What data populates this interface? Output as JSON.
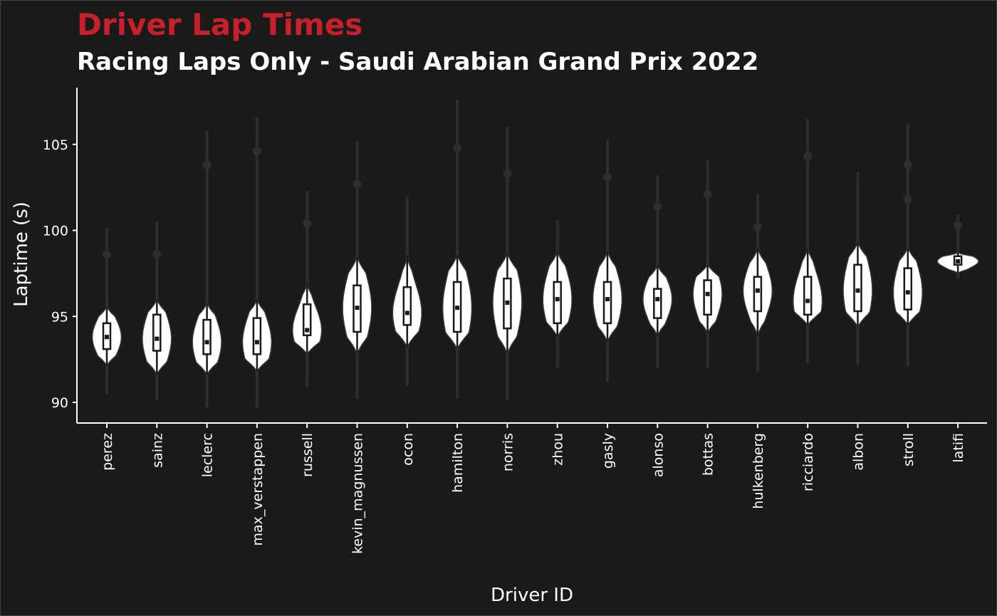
{
  "chart_data": {
    "type": "violin",
    "title": "Driver Lap Times",
    "subtitle": "Racing Laps Only - Saudi Arabian Grand Prix 2022",
    "xlabel": "Driver ID",
    "ylabel": "Laptime (s)",
    "ylim": [
      88.9,
      108.4
    ],
    "yticks": [
      90,
      95,
      100,
      105
    ],
    "grid": false,
    "colors": {
      "background": "#1a1a1a",
      "title": "#c8202a",
      "text": "#ffffff",
      "violin": "#ffffff",
      "whisker": "#2e2e2e",
      "outlier": "#2e2e2e",
      "box": "#1a1a1a"
    },
    "drivers": [
      {
        "name": "perez",
        "min": 90.5,
        "max": 100.1,
        "q1": 93.1,
        "median": 93.8,
        "q3": 94.6,
        "box_min": 92.1,
        "box_max": 95.6,
        "outliers": [
          98.6
        ]
      },
      {
        "name": "sainz",
        "min": 90.1,
        "max": 100.5,
        "q1": 93.0,
        "median": 93.7,
        "q3": 95.1,
        "box_min": 91.6,
        "box_max": 96.0,
        "outliers": [
          98.6
        ]
      },
      {
        "name": "leclerc",
        "min": 89.7,
        "max": 105.8,
        "q1": 92.8,
        "median": 93.5,
        "q3": 94.8,
        "box_min": 91.6,
        "box_max": 95.8,
        "outliers": [
          103.8
        ]
      },
      {
        "name": "max_verstappen",
        "min": 89.7,
        "max": 106.6,
        "q1": 92.8,
        "median": 93.5,
        "q3": 94.9,
        "box_min": 91.8,
        "box_max": 96.0,
        "outliers": [
          104.6
        ]
      },
      {
        "name": "russell",
        "min": 90.9,
        "max": 102.3,
        "q1": 93.9,
        "median": 94.2,
        "q3": 95.7,
        "box_min": 92.8,
        "box_max": 97.0,
        "outliers": [
          100.4
        ]
      },
      {
        "name": "kevin_magnussen",
        "min": 90.2,
        "max": 105.2,
        "q1": 94.1,
        "median": 95.5,
        "q3": 96.8,
        "box_min": 92.8,
        "box_max": 98.5,
        "outliers": [
          102.7
        ]
      },
      {
        "name": "ocon",
        "min": 91.0,
        "max": 102.0,
        "q1": 94.5,
        "median": 95.2,
        "q3": 96.7,
        "box_min": 93.2,
        "box_max": 98.6,
        "outliers": []
      },
      {
        "name": "hamilton",
        "min": 90.2,
        "max": 107.6,
        "q1": 94.1,
        "median": 95.5,
        "q3": 97.0,
        "box_min": 93.1,
        "box_max": 98.6,
        "outliers": [
          104.8
        ]
      },
      {
        "name": "norris",
        "min": 90.1,
        "max": 106.0,
        "q1": 94.3,
        "median": 95.8,
        "q3": 97.2,
        "box_min": 92.8,
        "box_max": 98.7,
        "outliers": [
          103.3
        ]
      },
      {
        "name": "zhou",
        "min": 92.0,
        "max": 100.6,
        "q1": 94.6,
        "median": 96.0,
        "q3": 97.0,
        "box_min": 93.8,
        "box_max": 98.8,
        "outliers": []
      },
      {
        "name": "gasly",
        "min": 91.2,
        "max": 105.3,
        "q1": 94.6,
        "median": 96.0,
        "q3": 97.0,
        "box_min": 93.5,
        "box_max": 98.8,
        "outliers": [
          103.1
        ]
      },
      {
        "name": "alonso",
        "min": 92.0,
        "max": 103.2,
        "q1": 94.9,
        "median": 96.0,
        "q3": 96.6,
        "box_min": 93.8,
        "box_max": 98.0,
        "outliers": [
          101.4
        ]
      },
      {
        "name": "bottas",
        "min": 92.0,
        "max": 104.1,
        "q1": 95.1,
        "median": 96.3,
        "q3": 97.1,
        "box_min": 94.0,
        "box_max": 98.0,
        "outliers": [
          102.1
        ]
      },
      {
        "name": "hulkenberg",
        "min": 91.8,
        "max": 102.1,
        "q1": 95.3,
        "median": 96.5,
        "q3": 97.3,
        "box_min": 93.8,
        "box_max": 99.0,
        "outliers": [
          100.2
        ]
      },
      {
        "name": "ricciardo",
        "min": 92.3,
        "max": 106.5,
        "q1": 95.1,
        "median": 95.9,
        "q3": 97.3,
        "box_min": 94.5,
        "box_max": 99.0,
        "outliers": [
          104.3
        ]
      },
      {
        "name": "albon",
        "min": 92.2,
        "max": 103.4,
        "q1": 95.3,
        "median": 96.5,
        "q3": 98.0,
        "box_min": 94.4,
        "box_max": 99.3,
        "outliers": []
      },
      {
        "name": "stroll",
        "min": 92.1,
        "max": 106.2,
        "q1": 95.4,
        "median": 96.4,
        "q3": 97.8,
        "box_min": 94.5,
        "box_max": 99.0,
        "outliers": [
          101.8,
          103.8
        ]
      },
      {
        "name": "latifi",
        "min": 97.2,
        "max": 100.9,
        "q1": 98.0,
        "median": 98.2,
        "q3": 98.5,
        "box_min": 97.5,
        "box_max": 98.7,
        "outliers": [
          100.3
        ]
      }
    ]
  }
}
